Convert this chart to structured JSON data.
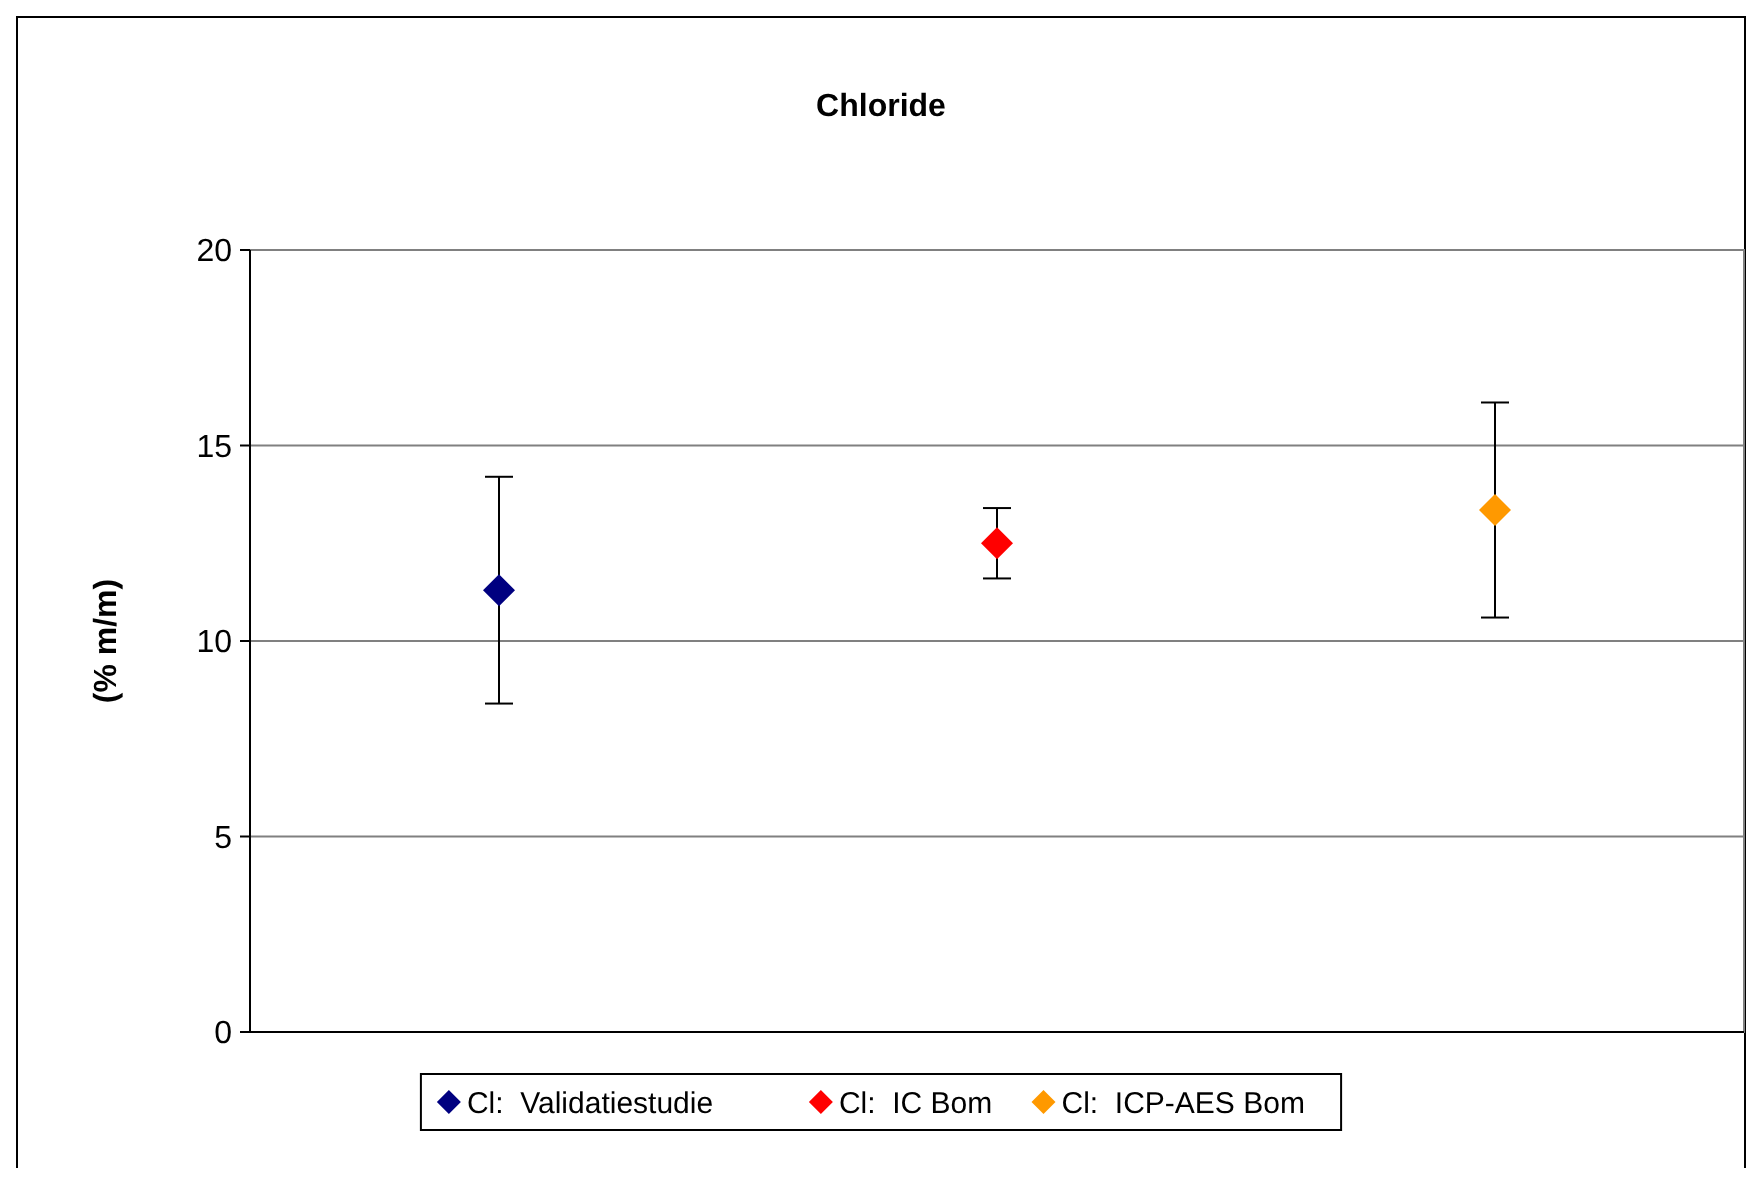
{
  "chart_data": {
    "type": "scatter",
    "title": "Chloride",
    "ylabel": "(% m/m)",
    "categories": [
      null,
      null,
      null
    ],
    "ylim": [
      0,
      20
    ],
    "yticks": [
      0,
      5,
      10,
      15,
      20
    ],
    "grid": "y",
    "legend": "bottom",
    "marker": "diamond",
    "tick_labels": "y",
    "series": [
      {
        "name": "Cl:  Validatiestudie",
        "color": "#000080",
        "values": [
          11.3,
          null,
          null
        ],
        "errors": [
          2.9,
          null,
          null
        ]
      },
      {
        "name": "Cl:  IC Bom",
        "color": "#ff0000",
        "values": [
          null,
          12.5,
          null
        ],
        "errors": [
          null,
          0.9,
          null
        ]
      },
      {
        "name": "Cl:  ICP-AES Bom",
        "color": "#ff9900",
        "values": [
          null,
          null,
          13.35
        ],
        "errors": [
          null,
          null,
          2.75
        ]
      }
    ]
  }
}
